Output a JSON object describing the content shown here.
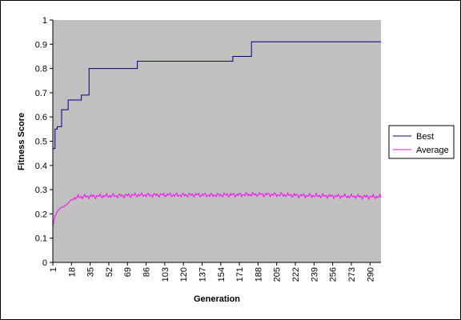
{
  "chart_data": {
    "type": "line",
    "xlabel": "Generation",
    "ylabel": "Fitness Score",
    "ylim": [
      0,
      1
    ],
    "yticks": [
      "0",
      "0.1",
      "0.2",
      "0.3",
      "0.4",
      "0.5",
      "0.6",
      "0.7",
      "0.8",
      "0.9",
      "1"
    ],
    "xlim": [
      1,
      300
    ],
    "xticks": [
      "1",
      "18",
      "35",
      "52",
      "69",
      "86",
      "103",
      "120",
      "137",
      "154",
      "171",
      "188",
      "205",
      "222",
      "239",
      "256",
      "273",
      "290"
    ],
    "grid": false,
    "legend_position": "right",
    "plot_background": "#c0c0c0",
    "series": [
      {
        "name": "Best",
        "color": "#000080",
        "steps": [
          [
            1,
            0.47
          ],
          [
            3,
            0.55
          ],
          [
            5,
            0.56
          ],
          [
            9,
            0.63
          ],
          [
            15,
            0.67
          ],
          [
            27,
            0.69
          ],
          [
            34,
            0.8
          ],
          [
            78,
            0.83
          ],
          [
            165,
            0.85
          ],
          [
            182,
            0.91
          ],
          [
            300,
            0.91
          ]
        ]
      },
      {
        "name": "Average",
        "color": "#ff00ff",
        "points": [
          [
            1,
            0.15
          ],
          [
            3,
            0.19
          ],
          [
            5,
            0.21
          ],
          [
            8,
            0.225
          ],
          [
            11,
            0.23
          ],
          [
            14,
            0.24
          ],
          [
            17,
            0.255
          ],
          [
            20,
            0.265
          ],
          [
            25,
            0.27
          ],
          [
            30,
            0.272
          ],
          [
            40,
            0.273
          ],
          [
            60,
            0.275
          ],
          [
            80,
            0.278
          ],
          [
            100,
            0.278
          ],
          [
            120,
            0.278
          ],
          [
            140,
            0.278
          ],
          [
            160,
            0.278
          ],
          [
            180,
            0.28
          ],
          [
            200,
            0.28
          ],
          [
            220,
            0.277
          ],
          [
            240,
            0.275
          ],
          [
            260,
            0.273
          ],
          [
            280,
            0.272
          ],
          [
            300,
            0.27
          ]
        ]
      }
    ]
  }
}
